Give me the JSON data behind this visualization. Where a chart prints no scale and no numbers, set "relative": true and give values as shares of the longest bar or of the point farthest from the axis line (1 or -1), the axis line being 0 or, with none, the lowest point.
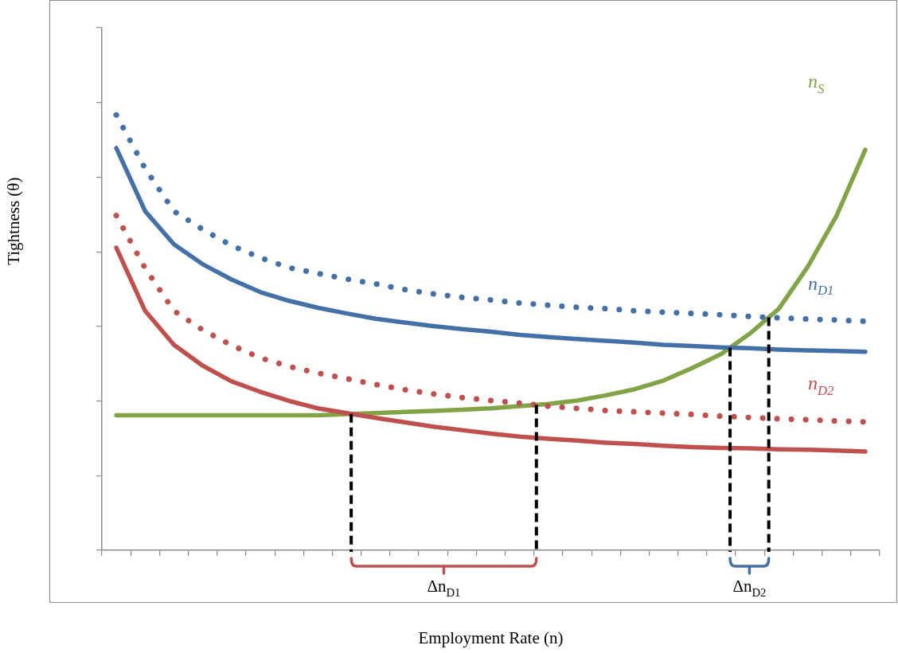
{
  "chart_data": {
    "type": "line",
    "relative": true,
    "legend": false,
    "grid": false,
    "tick_labels": false,
    "xlabel": "Employment Rate (n)",
    "ylabel": "Tightness (θ)",
    "annotations": [
      "Δn$_{D1}$",
      "Δn$_{D2}$"
    ],
    "categories": [
      null,
      null,
      null,
      null,
      null,
      null,
      null,
      null,
      null,
      null,
      null,
      null,
      null,
      null,
      null,
      null,
      null,
      null,
      null,
      null,
      null,
      null,
      null,
      null,
      null,
      null,
      null
    ],
    "series": [
      {
        "name": "n$_{D2}$",
        "color": "#c0504d",
        "line_style": "solid",
        "values": [
          0.695,
          0.55,
          0.472,
          0.424,
          0.388,
          0.364,
          0.343,
          0.326,
          0.315,
          0.304,
          0.294,
          0.284,
          0.276,
          0.268,
          0.261,
          0.256,
          0.252,
          0.247,
          0.244,
          0.24,
          0.237,
          0.235,
          0.234,
          0.232,
          0.231,
          0.229,
          0.227
        ]
      },
      {
        "color": "#c0504d",
        "line_style": "dotted",
        "values": [
          0.769,
          0.648,
          0.55,
          0.506,
          0.471,
          0.442,
          0.422,
          0.407,
          0.394,
          0.381,
          0.369,
          0.359,
          0.351,
          0.344,
          0.338,
          0.331,
          0.326,
          0.321,
          0.318,
          0.315,
          0.312,
          0.308,
          0.305,
          0.302,
          0.3,
          0.297,
          0.295
        ]
      },
      {
        "name": "n$_{D1}$",
        "color": "#4470a8",
        "line_style": "solid",
        "values": [
          0.924,
          0.779,
          0.703,
          0.657,
          0.622,
          0.593,
          0.573,
          0.557,
          0.544,
          0.532,
          0.523,
          0.515,
          0.508,
          0.502,
          0.495,
          0.49,
          0.485,
          0.481,
          0.477,
          0.472,
          0.469,
          0.466,
          0.464,
          0.461,
          0.459,
          0.458,
          0.456
        ]
      },
      {
        "color": "#4470a8",
        "line_style": "dotted",
        "values": [
          1,
          0.877,
          0.779,
          0.737,
          0.7,
          0.672,
          0.649,
          0.636,
          0.623,
          0.612,
          0.599,
          0.589,
          0.581,
          0.575,
          0.568,
          0.563,
          0.558,
          0.555,
          0.55,
          0.547,
          0.544,
          0.541,
          0.537,
          0.534,
          0.531,
          0.529,
          0.526
        ]
      },
      {
        "name": "n$_{S}$",
        "color": "#83a446",
        "line_style": "solid",
        "values": [
          0.31,
          0.31,
          0.31,
          0.31,
          0.31,
          0.31,
          0.31,
          0.31,
          0.313,
          0.315,
          0.318,
          0.32,
          0.323,
          0.326,
          0.331,
          0.336,
          0.344,
          0.356,
          0.37,
          0.39,
          0.419,
          0.451,
          0.498,
          0.555,
          0.651,
          0.768,
          0.92
        ]
      }
    ]
  }
}
